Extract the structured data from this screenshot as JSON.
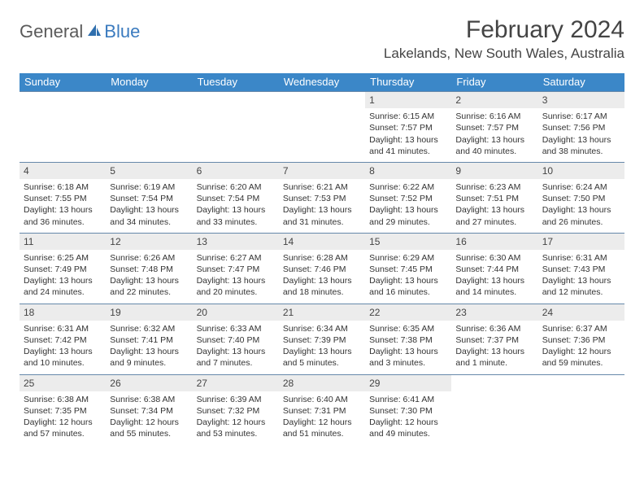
{
  "logo": {
    "part1": "General",
    "part2": "Blue"
  },
  "title": "February 2024",
  "location": "Lakelands, New South Wales, Australia",
  "header_bg": "#3b87c8",
  "daynum_bg": "#ececec",
  "row_border": "#6688aa",
  "day_headers": [
    "Sunday",
    "Monday",
    "Tuesday",
    "Wednesday",
    "Thursday",
    "Friday",
    "Saturday"
  ],
  "weeks": [
    [
      null,
      null,
      null,
      null,
      {
        "n": "1",
        "sr": "6:15 AM",
        "ss": "7:57 PM",
        "dl": "13 hours and 41 minutes."
      },
      {
        "n": "2",
        "sr": "6:16 AM",
        "ss": "7:57 PM",
        "dl": "13 hours and 40 minutes."
      },
      {
        "n": "3",
        "sr": "6:17 AM",
        "ss": "7:56 PM",
        "dl": "13 hours and 38 minutes."
      }
    ],
    [
      {
        "n": "4",
        "sr": "6:18 AM",
        "ss": "7:55 PM",
        "dl": "13 hours and 36 minutes."
      },
      {
        "n": "5",
        "sr": "6:19 AM",
        "ss": "7:54 PM",
        "dl": "13 hours and 34 minutes."
      },
      {
        "n": "6",
        "sr": "6:20 AM",
        "ss": "7:54 PM",
        "dl": "13 hours and 33 minutes."
      },
      {
        "n": "7",
        "sr": "6:21 AM",
        "ss": "7:53 PM",
        "dl": "13 hours and 31 minutes."
      },
      {
        "n": "8",
        "sr": "6:22 AM",
        "ss": "7:52 PM",
        "dl": "13 hours and 29 minutes."
      },
      {
        "n": "9",
        "sr": "6:23 AM",
        "ss": "7:51 PM",
        "dl": "13 hours and 27 minutes."
      },
      {
        "n": "10",
        "sr": "6:24 AM",
        "ss": "7:50 PM",
        "dl": "13 hours and 26 minutes."
      }
    ],
    [
      {
        "n": "11",
        "sr": "6:25 AM",
        "ss": "7:49 PM",
        "dl": "13 hours and 24 minutes."
      },
      {
        "n": "12",
        "sr": "6:26 AM",
        "ss": "7:48 PM",
        "dl": "13 hours and 22 minutes."
      },
      {
        "n": "13",
        "sr": "6:27 AM",
        "ss": "7:47 PM",
        "dl": "13 hours and 20 minutes."
      },
      {
        "n": "14",
        "sr": "6:28 AM",
        "ss": "7:46 PM",
        "dl": "13 hours and 18 minutes."
      },
      {
        "n": "15",
        "sr": "6:29 AM",
        "ss": "7:45 PM",
        "dl": "13 hours and 16 minutes."
      },
      {
        "n": "16",
        "sr": "6:30 AM",
        "ss": "7:44 PM",
        "dl": "13 hours and 14 minutes."
      },
      {
        "n": "17",
        "sr": "6:31 AM",
        "ss": "7:43 PM",
        "dl": "13 hours and 12 minutes."
      }
    ],
    [
      {
        "n": "18",
        "sr": "6:31 AM",
        "ss": "7:42 PM",
        "dl": "13 hours and 10 minutes."
      },
      {
        "n": "19",
        "sr": "6:32 AM",
        "ss": "7:41 PM",
        "dl": "13 hours and 9 minutes."
      },
      {
        "n": "20",
        "sr": "6:33 AM",
        "ss": "7:40 PM",
        "dl": "13 hours and 7 minutes."
      },
      {
        "n": "21",
        "sr": "6:34 AM",
        "ss": "7:39 PM",
        "dl": "13 hours and 5 minutes."
      },
      {
        "n": "22",
        "sr": "6:35 AM",
        "ss": "7:38 PM",
        "dl": "13 hours and 3 minutes."
      },
      {
        "n": "23",
        "sr": "6:36 AM",
        "ss": "7:37 PM",
        "dl": "13 hours and 1 minute."
      },
      {
        "n": "24",
        "sr": "6:37 AM",
        "ss": "7:36 PM",
        "dl": "12 hours and 59 minutes."
      }
    ],
    [
      {
        "n": "25",
        "sr": "6:38 AM",
        "ss": "7:35 PM",
        "dl": "12 hours and 57 minutes."
      },
      {
        "n": "26",
        "sr": "6:38 AM",
        "ss": "7:34 PM",
        "dl": "12 hours and 55 minutes."
      },
      {
        "n": "27",
        "sr": "6:39 AM",
        "ss": "7:32 PM",
        "dl": "12 hours and 53 minutes."
      },
      {
        "n": "28",
        "sr": "6:40 AM",
        "ss": "7:31 PM",
        "dl": "12 hours and 51 minutes."
      },
      {
        "n": "29",
        "sr": "6:41 AM",
        "ss": "7:30 PM",
        "dl": "12 hours and 49 minutes."
      },
      null,
      null
    ]
  ],
  "labels": {
    "sunrise": "Sunrise:",
    "sunset": "Sunset:",
    "daylight": "Daylight:"
  }
}
